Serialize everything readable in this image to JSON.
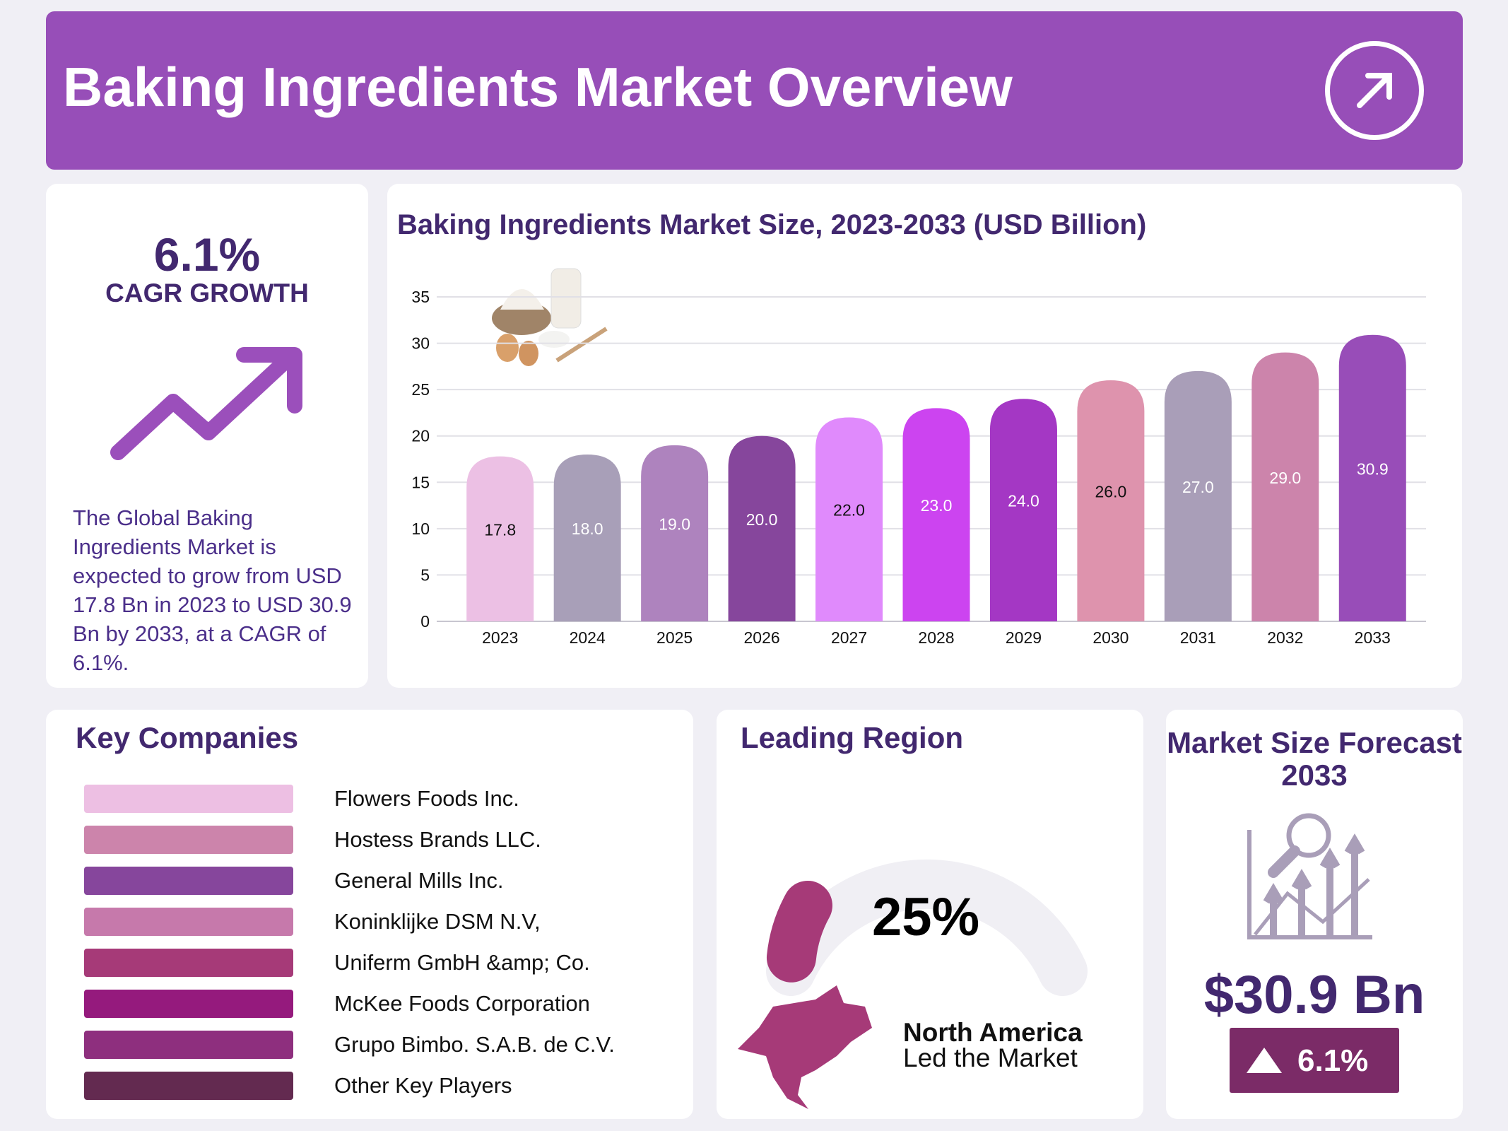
{
  "header": {
    "title": "Baking Ingredients Market Overview",
    "icon": "arrow-up-right-circle-icon"
  },
  "cagr": {
    "value": "6.1%",
    "label": "CAGR GROWTH",
    "description": "The Global Baking Ingredients Market is expected to grow from USD 17.8 Bn in 2023 to USD 30.9 Bn by 2033,  at a CAGR of 6.1%."
  },
  "chart_data": {
    "type": "bar",
    "title": "Baking Ingredients Market Size, 2023-2033 (USD Billion)",
    "categories": [
      "2023",
      "2024",
      "2025",
      "2026",
      "2027",
      "2028",
      "2029",
      "2030",
      "2031",
      "2032",
      "2033"
    ],
    "values": [
      17.8,
      18.0,
      19.0,
      20.0,
      22.0,
      23.0,
      24.0,
      26.0,
      27.0,
      29.0,
      30.9
    ],
    "value_labels": [
      "17.8",
      "18.0",
      "19.0",
      "20.0",
      "22.0",
      "23.0",
      "24.0",
      "26.0",
      "27.0",
      "29.0",
      "30.9"
    ],
    "colors": [
      "#ECC0E4",
      "#A89FB8",
      "#AE83BE",
      "#86469C",
      "#E08AFC",
      "#CC44F0",
      "#A437C4",
      "#DE93AD",
      "#A99EB8",
      "#CC84AB",
      "#984DB8"
    ],
    "label_colors": [
      "#111111",
      "#ffffff",
      "#ffffff",
      "#ffffff",
      "#111111",
      "#ffffff",
      "#ffffff",
      "#111111",
      "#ffffff",
      "#ffffff",
      "#ffffff"
    ],
    "yticks": [
      "0",
      "5",
      "10",
      "15",
      "20",
      "25",
      "30",
      "35"
    ],
    "ylim": [
      0,
      35
    ],
    "grid": true,
    "xlabel": "",
    "ylabel": ""
  },
  "companies": {
    "title": "Key Companies",
    "items": [
      {
        "name": "Flowers Foods Inc.",
        "color": "#EDBFE3"
      },
      {
        "name": "Hostess Brands LLC.",
        "color": "#CC84AB"
      },
      {
        "name": "General Mills Inc.",
        "color": "#86469C"
      },
      {
        "name": "Koninklijke DSM N.V,",
        "color": "#C679AB"
      },
      {
        "name": "Uniferm GmbH &amp; Co.",
        "color": "#A63A78"
      },
      {
        "name": "McKee Foods Corporation",
        "color": "#951A7D"
      },
      {
        "name": "Grupo Bimbo. S.A.B. de C.V.",
        "color": "#8E2F7E"
      },
      {
        "name": "Other Key Players",
        "color": "#632A50"
      }
    ]
  },
  "region": {
    "title": "Leading Region",
    "share": "25%",
    "share_value": 25,
    "name": "North America",
    "subtitle": "Led the Market",
    "accent": "#A63A78"
  },
  "forecast": {
    "title": "Market Size Forecast 2033",
    "value": "$30.9 Bn",
    "growth": "6.1%"
  }
}
